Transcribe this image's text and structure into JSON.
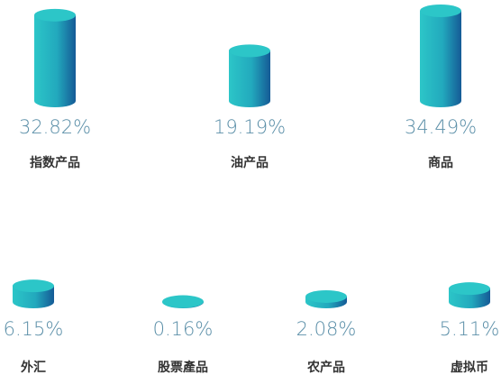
{
  "chart_data": {
    "type": "cylinder",
    "categories": [
      "指数产品",
      "油产品",
      "商品",
      "外汇",
      "股票產品",
      "农产品",
      "虚拟币"
    ],
    "values": [
      32.82,
      19.19,
      34.49,
      6.15,
      0.16,
      2.08,
      5.11
    ],
    "value_labels": [
      "32.82%",
      "19.19%",
      "34.49%",
      "6.15%",
      "0.16%",
      "2.08%",
      "5.11%"
    ],
    "color": "#2cc6c8"
  }
}
